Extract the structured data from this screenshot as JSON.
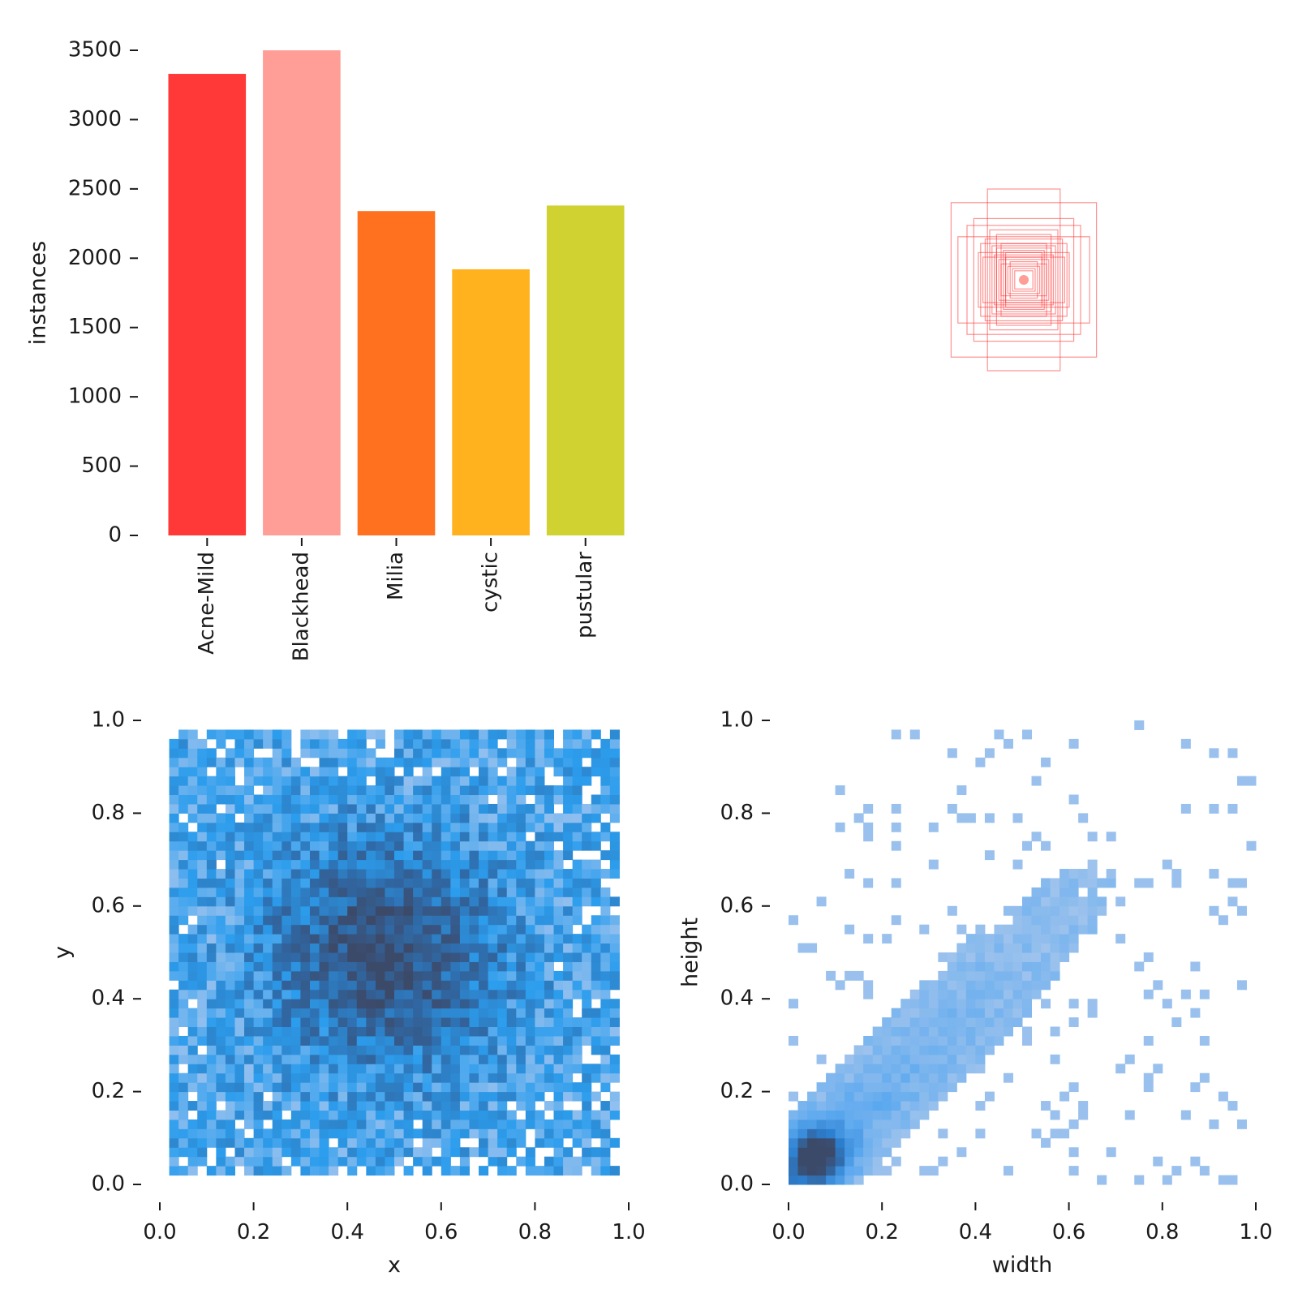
{
  "chart_data": [
    {
      "panel": "top-left",
      "type": "bar",
      "categories": [
        "Acne-Mild",
        "Blackhead",
        "Milia",
        "cystic",
        "pustular"
      ],
      "values": [
        3330,
        3500,
        2340,
        1920,
        2380
      ],
      "colors": [
        "#ff3838",
        "#ff9d97",
        "#ff701f",
        "#ffb21d",
        "#cfd231"
      ],
      "ylabel": "instances",
      "xlabel": "",
      "ylim": [
        0,
        3500
      ],
      "yticks": [
        0,
        500,
        1000,
        1500,
        2000,
        2500,
        3000,
        3500
      ],
      "grid": false
    },
    {
      "panel": "top-right",
      "type": "scatter",
      "description_kind": "box-outline-overlay",
      "color": "#ff3838",
      "center": [
        0.5,
        0.5
      ],
      "boxes": [
        {
          "w": 0.32,
          "h": 0.34
        },
        {
          "w": 0.16,
          "h": 0.4
        },
        {
          "w": 0.25,
          "h": 0.24
        },
        {
          "w": 0.22,
          "h": 0.27
        },
        {
          "w": 0.12,
          "h": 0.2
        },
        {
          "w": 0.29,
          "h": 0.19
        },
        {
          "w": 0.14,
          "h": 0.15
        },
        {
          "w": 0.2,
          "h": 0.12
        },
        {
          "w": 0.1,
          "h": 0.16
        },
        {
          "w": 0.17,
          "h": 0.18
        },
        {
          "w": 0.08,
          "h": 0.1
        },
        {
          "w": 0.11,
          "h": 0.09
        },
        {
          "w": 0.06,
          "h": 0.08
        },
        {
          "w": 0.09,
          "h": 0.13
        },
        {
          "w": 0.13,
          "h": 0.11
        },
        {
          "w": 0.05,
          "h": 0.05
        },
        {
          "w": 0.07,
          "h": 0.06
        },
        {
          "w": 0.15,
          "h": 0.22
        },
        {
          "w": 0.19,
          "h": 0.16
        },
        {
          "w": 0.04,
          "h": 0.04
        },
        {
          "w": 0.1,
          "h": 0.07
        },
        {
          "w": 0.12,
          "h": 0.14
        },
        {
          "w": 0.18,
          "h": 0.1
        },
        {
          "w": 0.08,
          "h": 0.12
        }
      ],
      "grid": false
    },
    {
      "panel": "bottom-left",
      "type": "heatmap",
      "xlabel": "x",
      "ylabel": "y",
      "xlim": [
        0,
        1
      ],
      "ylim": [
        0,
        1
      ],
      "xticks": [
        0.0,
        0.2,
        0.4,
        0.6,
        0.8,
        1.0
      ],
      "yticks": [
        0.0,
        0.2,
        0.4,
        0.6,
        0.8,
        1.0
      ],
      "tick_labels": [
        "0.0",
        "0.2",
        "0.4",
        "0.6",
        "0.8",
        "1.0"
      ],
      "bins": 50,
      "density_peak": [
        0.48,
        0.5
      ],
      "colormap": [
        "#a3c5ef",
        "#2c9ded",
        "#2f6aa8",
        "#3c4a6a"
      ],
      "grid": false
    },
    {
      "panel": "bottom-right",
      "type": "heatmap",
      "xlabel": "width",
      "ylabel": "height",
      "xlim": [
        0,
        1
      ],
      "ylim": [
        0,
        1
      ],
      "xticks": [
        0.0,
        0.2,
        0.4,
        0.6,
        0.8,
        1.0
      ],
      "yticks": [
        0.0,
        0.2,
        0.4,
        0.6,
        0.8,
        1.0
      ],
      "tick_labels": [
        "0.0",
        "0.2",
        "0.4",
        "0.6",
        "0.8",
        "1.0"
      ],
      "bins": 50,
      "density_peak": [
        0.06,
        0.06
      ],
      "colormap": [
        "#aec9ec",
        "#5aa8ef",
        "#2c7fd0",
        "#3c4a6a"
      ],
      "grid": false
    }
  ]
}
